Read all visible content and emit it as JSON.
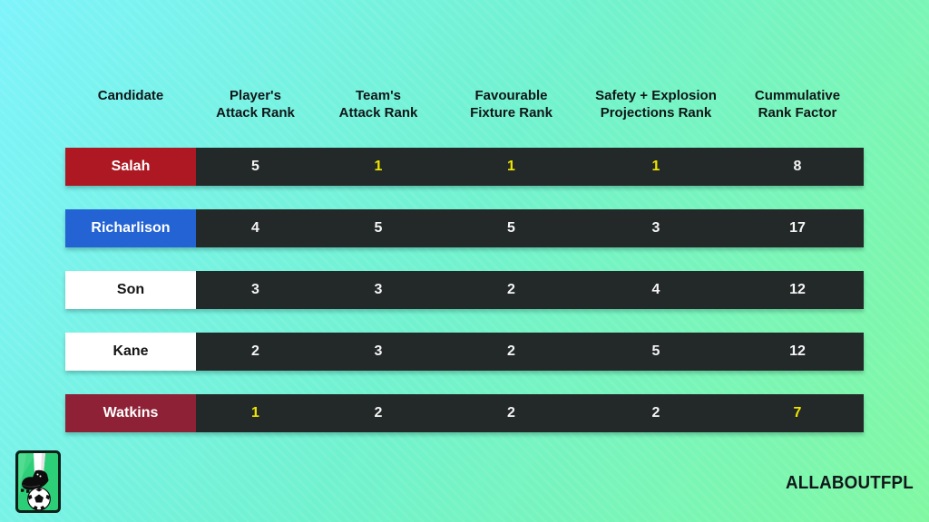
{
  "background": {
    "gradient_start": "#7df3fb",
    "gradient_mid": "#71f2cf",
    "gradient_end": "#80f8a2"
  },
  "table": {
    "headers": [
      "Candidate",
      "Player's\nAttack Rank",
      "Team's\nAttack Rank",
      "Favourable\nFixture Rank",
      "Safety + Explosion\nProjections Rank",
      "Cummulative\nRank Factor"
    ],
    "strip_color": "#232928",
    "value_color": "#f5f5f5",
    "highlight_color": "#f0e600",
    "rows": [
      {
        "candidate": "Salah",
        "cell_color": "#ad1822",
        "label_color": "#ffffff",
        "values": [
          "5",
          "1",
          "1",
          "1",
          "8"
        ],
        "highlighted": [
          false,
          true,
          true,
          true,
          false
        ]
      },
      {
        "candidate": "Richarlison",
        "cell_color": "#2363d4",
        "label_color": "#ffffff",
        "values": [
          "4",
          "5",
          "5",
          "3",
          "17"
        ],
        "highlighted": [
          false,
          false,
          false,
          false,
          false
        ]
      },
      {
        "candidate": "Son",
        "cell_color": "#ffffff",
        "label_color": "#141414",
        "values": [
          "3",
          "3",
          "2",
          "4",
          "12"
        ],
        "highlighted": [
          false,
          false,
          false,
          false,
          false
        ]
      },
      {
        "candidate": "Kane",
        "cell_color": "#ffffff",
        "label_color": "#141414",
        "values": [
          "2",
          "3",
          "2",
          "5",
          "12"
        ],
        "highlighted": [
          false,
          false,
          false,
          false,
          false
        ]
      },
      {
        "candidate": "Watkins",
        "cell_color": "#8e2136",
        "label_color": "#ffffff",
        "values": [
          "1",
          "2",
          "2",
          "2",
          "7"
        ],
        "highlighted": [
          true,
          false,
          false,
          false,
          true
        ]
      }
    ]
  },
  "chart_data": {
    "type": "table",
    "title": "",
    "columns": [
      "Candidate",
      "Player's Attack Rank",
      "Team's Attack Rank",
      "Favourable Fixture Rank",
      "Safety + Explosion Projections Rank",
      "Cummulative Rank Factor"
    ],
    "rows": [
      [
        "Salah",
        5,
        1,
        1,
        1,
        8
      ],
      [
        "Richarlison",
        4,
        5,
        5,
        3,
        17
      ],
      [
        "Son",
        3,
        3,
        2,
        4,
        12
      ],
      [
        "Kane",
        2,
        3,
        2,
        5,
        12
      ],
      [
        "Watkins",
        1,
        2,
        2,
        2,
        7
      ]
    ],
    "highlighted_cells": [
      {
        "row": "Salah",
        "columns": [
          "Team's Attack Rank",
          "Favourable Fixture Rank",
          "Safety + Explosion Projections Rank"
        ]
      },
      {
        "row": "Watkins",
        "columns": [
          "Player's Attack Rank",
          "Cummulative Rank Factor"
        ]
      }
    ],
    "highlight_color": "#f0e600"
  },
  "footer": {
    "brand": "ALLABOUTFPL"
  },
  "logo": {
    "name": "football-boot-and-ball"
  }
}
